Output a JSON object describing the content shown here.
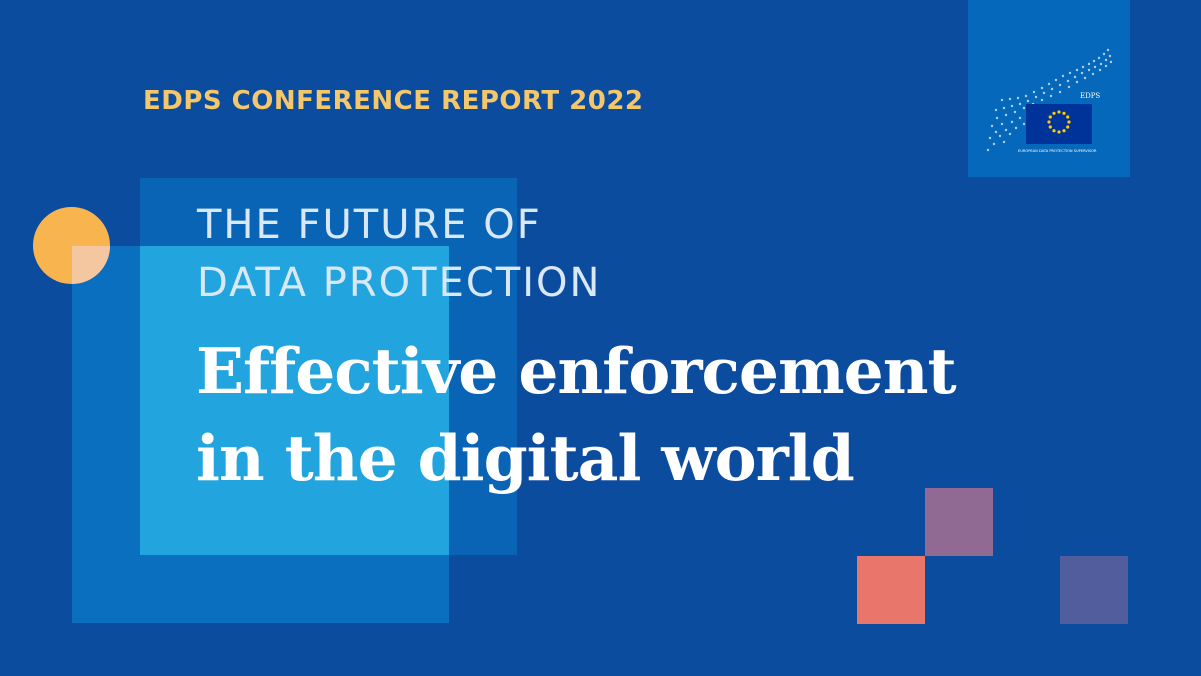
{
  "report_title": "EDPS CONFERENCE REPORT 2022",
  "subtitle": {
    "line1": "THE FUTURE OF",
    "line2": "DATA PROTECTION"
  },
  "headline": {
    "line1": "Effective enforcement",
    "line2": "in the digital world"
  },
  "logo": {
    "abbr": "EDPS",
    "name": "EUROPEAN DATA PROTECTION SUPERVISOR",
    "icon": "edps-logo-eu-flag"
  },
  "colors": {
    "background": "#0c4c9f",
    "accent_yellow": "#f3c76a",
    "circle": "#f8b54f",
    "square_light": "#22a4de",
    "square_mid": "#0c72c1",
    "pixel_mauve": "#916a93",
    "pixel_coral": "#e9766a",
    "pixel_indigo": "#515d9d",
    "logo_box": "#0568bb",
    "eu_flag": "#003399",
    "eu_stars": "#ffcc00"
  }
}
